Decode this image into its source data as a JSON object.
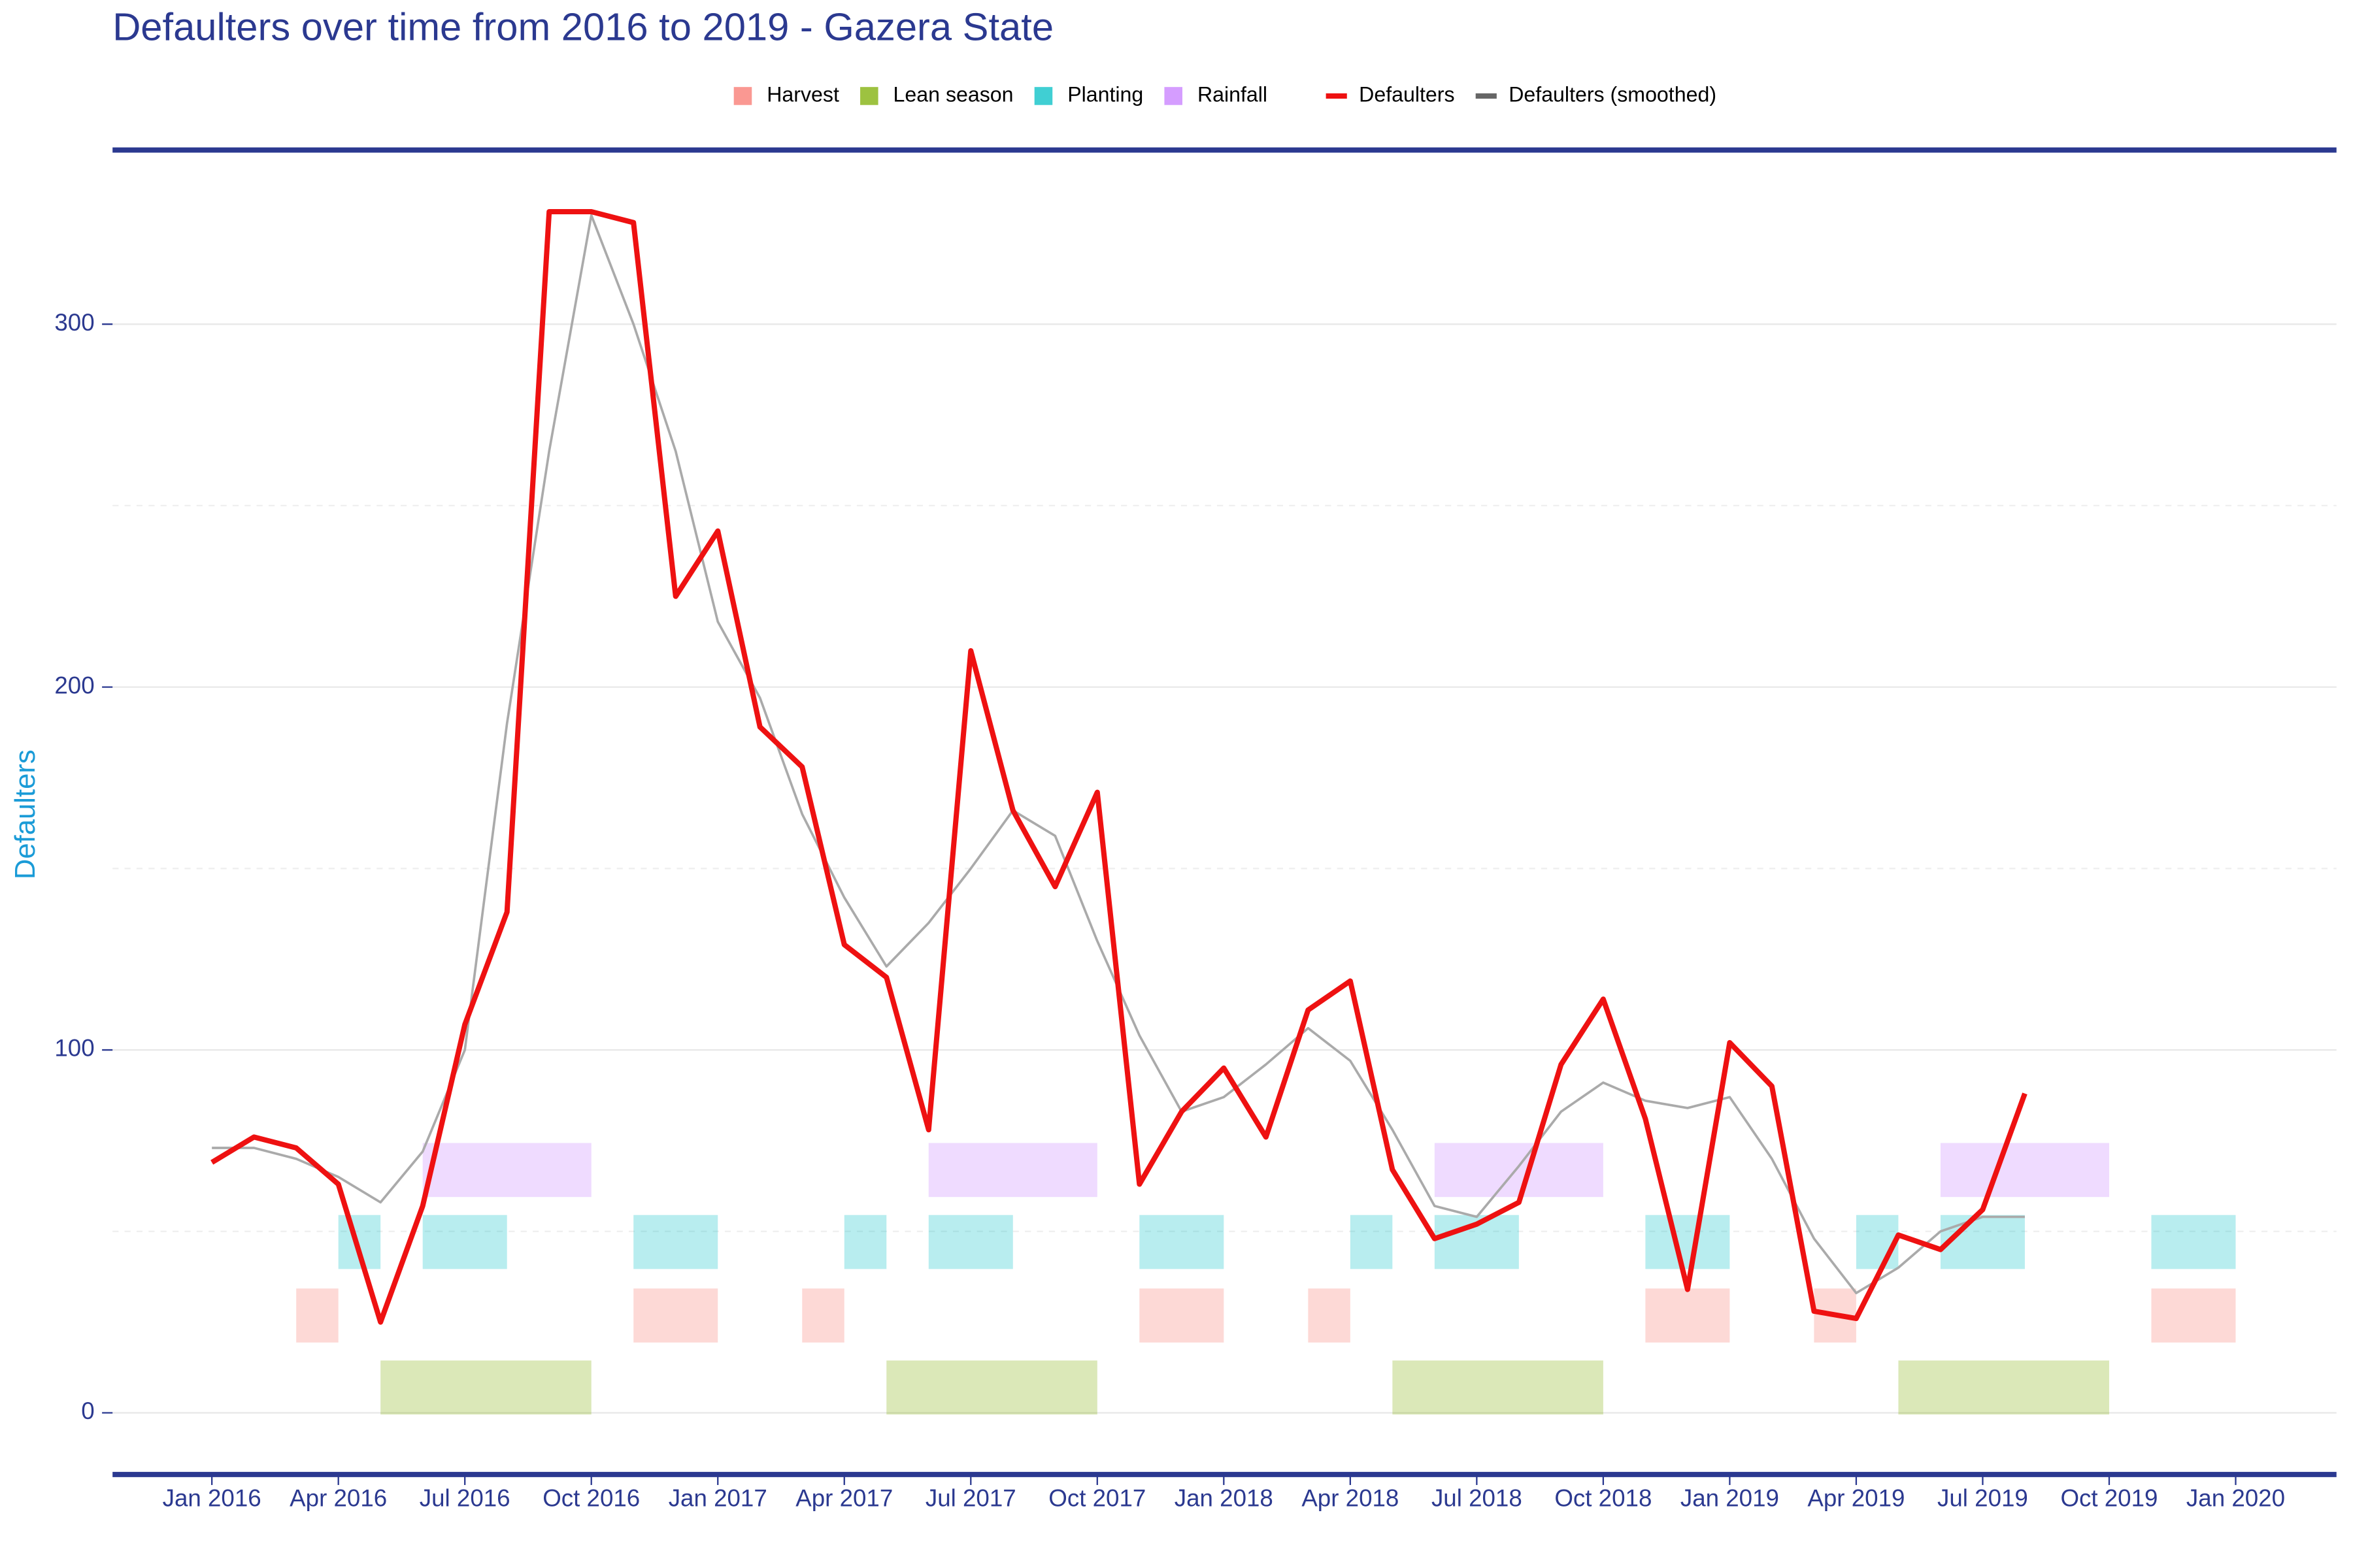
{
  "chart_data": {
    "type": "line",
    "title": "Defaulters over time from 2016 to 2019 - Gazera State",
    "y_label": "Defaulters",
    "x": [
      "2016-01",
      "2016-02",
      "2016-03",
      "2016-04",
      "2016-05",
      "2016-06",
      "2016-07",
      "2016-08",
      "2016-09",
      "2016-10",
      "2016-11",
      "2016-12",
      "2017-01",
      "2017-02",
      "2017-03",
      "2017-04",
      "2017-05",
      "2017-06",
      "2017-07",
      "2017-08",
      "2017-09",
      "2017-10",
      "2017-11",
      "2017-12",
      "2018-01",
      "2018-02",
      "2018-03",
      "2018-04",
      "2018-05",
      "2018-06",
      "2018-07",
      "2018-08",
      "2018-09",
      "2018-10",
      "2018-11",
      "2018-12",
      "2019-01",
      "2019-02",
      "2019-03",
      "2019-04",
      "2019-05",
      "2019-06",
      "2019-07",
      "2019-08"
    ],
    "series": [
      {
        "name": "Defaulters",
        "color": "#ee1111",
        "values": [
          69,
          76,
          73,
          63,
          25,
          57,
          107,
          138,
          331,
          331,
          328,
          225,
          243,
          189,
          178,
          129,
          120,
          78,
          210,
          166,
          145,
          171,
          63,
          83,
          95,
          76,
          111,
          119,
          67,
          48,
          52,
          58,
          96,
          114,
          81,
          34,
          102,
          90,
          28,
          26,
          49,
          45,
          56,
          88
        ]
      },
      {
        "name": "Defaulters (smoothed)",
        "color": "#aaaaaa",
        "legend_color": "#666666",
        "values": [
          73,
          73,
          70,
          65,
          58,
          72,
          100,
          190,
          265,
          330,
          300,
          265,
          218,
          197,
          165,
          142,
          123,
          135,
          150,
          166,
          159,
          130,
          104,
          83,
          87,
          96,
          106,
          97,
          78,
          57,
          54,
          68,
          83,
          91,
          86,
          84,
          87,
          70,
          48,
          33,
          40,
          50,
          54,
          54
        ]
      }
    ],
    "bands": [
      {
        "name": "Harvest",
        "color": "#f8766d",
        "periods": [
          [
            "2016-03",
            "2016-04"
          ],
          [
            "2016-11",
            "2017-01"
          ],
          [
            "2017-03",
            "2017-04"
          ],
          [
            "2017-11",
            "2018-01"
          ],
          [
            "2018-03",
            "2018-04"
          ],
          [
            "2018-11",
            "2019-01"
          ],
          [
            "2019-03",
            "2019-04"
          ],
          [
            "2019-11",
            "2020-01"
          ]
        ]
      },
      {
        "name": "Lean season",
        "color": "#7cae00",
        "periods": [
          [
            "2016-05",
            "2016-10"
          ],
          [
            "2017-05",
            "2017-10"
          ],
          [
            "2018-05",
            "2018-10"
          ],
          [
            "2019-05",
            "2019-10"
          ]
        ]
      },
      {
        "name": "Planting",
        "color": "#00bfc4",
        "periods": [
          [
            "2016-04",
            "2016-05"
          ],
          [
            "2016-06",
            "2016-08"
          ],
          [
            "2016-11",
            "2017-01"
          ],
          [
            "2017-04",
            "2017-05"
          ],
          [
            "2017-06",
            "2017-08"
          ],
          [
            "2017-11",
            "2018-01"
          ],
          [
            "2018-04",
            "2018-05"
          ],
          [
            "2018-06",
            "2018-08"
          ],
          [
            "2018-11",
            "2019-01"
          ],
          [
            "2019-04",
            "2019-05"
          ],
          [
            "2019-06",
            "2019-08"
          ],
          [
            "2019-11",
            "2020-01"
          ]
        ]
      },
      {
        "name": "Rainfall",
        "color": "#c77cff",
        "periods": [
          [
            "2016-06",
            "2016-10"
          ],
          [
            "2017-06",
            "2017-10"
          ],
          [
            "2018-06",
            "2018-10"
          ],
          [
            "2019-06",
            "2019-10"
          ]
        ]
      }
    ],
    "xlim": [
      "2015-11",
      "2020-03"
    ],
    "xticks": [
      {
        "value": "2016-01",
        "label": "Jan 2016"
      },
      {
        "value": "2016-04",
        "label": "Apr 2016"
      },
      {
        "value": "2016-07",
        "label": "Jul 2016"
      },
      {
        "value": "2016-10",
        "label": "Oct 2016"
      },
      {
        "value": "2017-01",
        "label": "Jan 2017"
      },
      {
        "value": "2017-04",
        "label": "Apr 2017"
      },
      {
        "value": "2017-07",
        "label": "Jul 2017"
      },
      {
        "value": "2017-10",
        "label": "Oct 2017"
      },
      {
        "value": "2018-01",
        "label": "Jan 2018"
      },
      {
        "value": "2018-04",
        "label": "Apr 2018"
      },
      {
        "value": "2018-07",
        "label": "Jul 2018"
      },
      {
        "value": "2018-10",
        "label": "Oct 2018"
      },
      {
        "value": "2019-01",
        "label": "Jan 2019"
      },
      {
        "value": "2019-04",
        "label": "Apr 2019"
      },
      {
        "value": "2019-07",
        "label": "Jul 2019"
      },
      {
        "value": "2019-10",
        "label": "Oct 2019"
      },
      {
        "value": "2020-01",
        "label": "Jan 2020"
      }
    ],
    "ylim": [
      -17,
      348
    ],
    "yticks": [
      0,
      100,
      200,
      300
    ],
    "minor_yticks": [
      50,
      150,
      250
    ],
    "grid": true
  }
}
